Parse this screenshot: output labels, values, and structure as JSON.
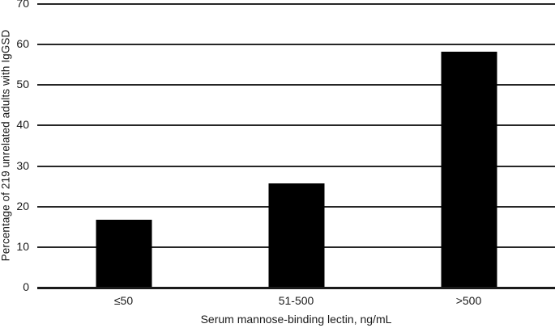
{
  "chart_data": {
    "type": "bar",
    "title": "",
    "categories": [
      "≤50",
      "51-500",
      ">500"
    ],
    "values": [
      16.5,
      25.6,
      58
    ],
    "xlabel": "Serum mannose-binding lectin, ng/mL",
    "ylabel": "Percentage of 219 unrelated adults with IgGSD",
    "ylim": [
      0,
      70
    ],
    "yticks": [
      0,
      10,
      20,
      30,
      40,
      50,
      60,
      70
    ],
    "grid": "horizontal-only",
    "legend_position": "none",
    "bar_color": "#000000",
    "gridline_color": "#262626",
    "axis_line_color": "#1a1a1a",
    "background_color": "#ffffff"
  }
}
